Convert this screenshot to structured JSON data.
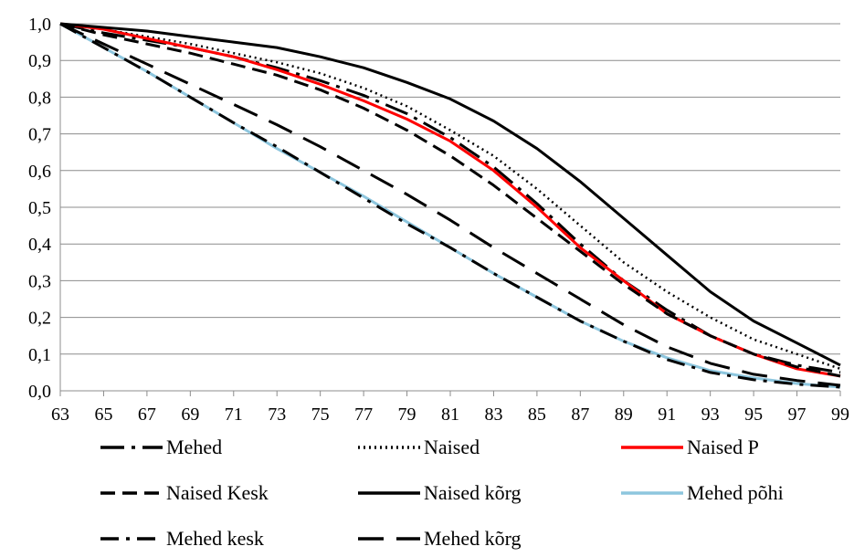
{
  "chart_data": {
    "type": "line",
    "title": "",
    "xlabel": "",
    "ylabel": "",
    "xlim": [
      63,
      99
    ],
    "ylim": [
      0,
      1
    ],
    "grid": true,
    "legend_position": "bottom",
    "x_ticks": [
      "63",
      "65",
      "67",
      "69",
      "71",
      "73",
      "75",
      "77",
      "79",
      "81",
      "83",
      "85",
      "87",
      "89",
      "91",
      "93",
      "95",
      "97",
      "99"
    ],
    "y_ticks": [
      "0,0",
      "0,1",
      "0,2",
      "0,3",
      "0,4",
      "0,5",
      "0,6",
      "0,7",
      "0,8",
      "0,9",
      "1,0"
    ],
    "x": [
      63,
      65,
      67,
      69,
      71,
      73,
      75,
      77,
      79,
      81,
      83,
      85,
      87,
      89,
      91,
      93,
      95,
      97,
      99
    ],
    "series": [
      {
        "name": "Mehed",
        "color": "#000000",
        "dash": "long-dash-dot",
        "values": [
          1.0,
          0.975,
          0.955,
          0.935,
          0.91,
          0.88,
          0.845,
          0.805,
          0.755,
          0.69,
          0.61,
          0.51,
          0.4,
          0.3,
          0.22,
          0.15,
          0.1,
          0.07,
          0.05
        ]
      },
      {
        "name": "Naised",
        "color": "#000000",
        "dash": "dotted",
        "values": [
          1.0,
          0.985,
          0.965,
          0.945,
          0.92,
          0.895,
          0.865,
          0.825,
          0.775,
          0.71,
          0.64,
          0.55,
          0.45,
          0.35,
          0.27,
          0.2,
          0.14,
          0.1,
          0.06
        ]
      },
      {
        "name": "Naised P",
        "color": "#ff0000",
        "dash": "solid",
        "values": [
          1.0,
          0.985,
          0.96,
          0.935,
          0.91,
          0.875,
          0.835,
          0.79,
          0.74,
          0.68,
          0.6,
          0.5,
          0.39,
          0.3,
          0.21,
          0.15,
          0.1,
          0.06,
          0.04
        ]
      },
      {
        "name": "Naised Kesk",
        "color": "#000000",
        "dash": "dash",
        "values": [
          1.0,
          0.97,
          0.945,
          0.92,
          0.89,
          0.86,
          0.82,
          0.77,
          0.71,
          0.64,
          0.56,
          0.47,
          0.38,
          0.29,
          0.21,
          0.15,
          0.1,
          0.065,
          0.04
        ]
      },
      {
        "name": "Naised kõrg",
        "color": "#000000",
        "dash": "solid",
        "values": [
          1.0,
          0.99,
          0.98,
          0.965,
          0.95,
          0.935,
          0.91,
          0.88,
          0.84,
          0.795,
          0.735,
          0.66,
          0.57,
          0.47,
          0.37,
          0.27,
          0.19,
          0.13,
          0.07
        ]
      },
      {
        "name": "Mehed põhi",
        "color": "#8dc6de",
        "dash": "solid",
        "values": [
          1.0,
          0.935,
          0.87,
          0.8,
          0.73,
          0.66,
          0.595,
          0.53,
          0.46,
          0.39,
          0.32,
          0.255,
          0.19,
          0.135,
          0.09,
          0.055,
          0.035,
          0.02,
          0.01
        ]
      },
      {
        "name": "Mehed kesk",
        "color": "#000000",
        "dash": "dash-dot",
        "values": [
          1.0,
          0.935,
          0.87,
          0.8,
          0.73,
          0.665,
          0.595,
          0.525,
          0.455,
          0.39,
          0.32,
          0.255,
          0.19,
          0.135,
          0.085,
          0.05,
          0.03,
          0.018,
          0.01
        ]
      },
      {
        "name": "Mehed kõrg",
        "color": "#000000",
        "dash": "long-dash",
        "values": [
          1.0,
          0.945,
          0.89,
          0.835,
          0.78,
          0.725,
          0.665,
          0.6,
          0.535,
          0.465,
          0.39,
          0.32,
          0.25,
          0.18,
          0.12,
          0.075,
          0.045,
          0.028,
          0.015
        ]
      }
    ],
    "legend": [
      {
        "label": "Mehed"
      },
      {
        "label": "Naised"
      },
      {
        "label": "Naised P"
      },
      {
        "label": "Naised Kesk"
      },
      {
        "label": "Naised kõrg"
      },
      {
        "label": "Mehed põhi"
      },
      {
        "label": "Mehed kesk"
      },
      {
        "label": "Mehed kõrg"
      }
    ]
  }
}
